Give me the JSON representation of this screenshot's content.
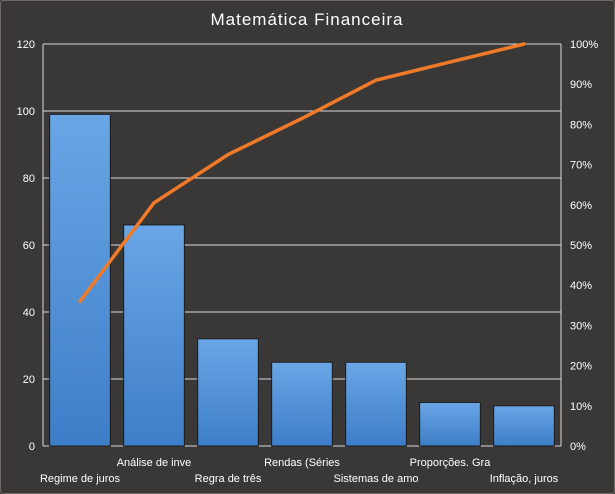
{
  "chart_data": {
    "type": "bar",
    "title": "Matemática  Financeira",
    "categories": [
      "Regime de juros",
      "Análise de inve",
      "Regra de três",
      "Rendas (Séries",
      "Sistemas de amo",
      "Proporções. Gra",
      "Inflação, juros"
    ],
    "series": [
      {
        "type": "bar",
        "axis": "left",
        "values": [
          99,
          66,
          32,
          25,
          25,
          13,
          12
        ]
      },
      {
        "type": "line",
        "axis": "right",
        "values": [
          36,
          60.5,
          72.5,
          81.5,
          91,
          95.5,
          100
        ]
      }
    ],
    "y_left": {
      "min": 0,
      "max": 120,
      "ticks": [
        "0",
        "20",
        "40",
        "60",
        "80",
        "100",
        "120"
      ]
    },
    "y_right": {
      "min": 0,
      "max": 100,
      "ticks": [
        "0%",
        "10%",
        "20%",
        "30%",
        "40%",
        "50%",
        "60%",
        "70%",
        "80%",
        "90%",
        "100%"
      ]
    },
    "grid": true,
    "legend": "none",
    "colors": {
      "background": "#3a3837",
      "bar": "#4f8fd6",
      "bar_light": "#6aa6e6",
      "bar_dark": "#3d7ec8",
      "line": "#f07a28",
      "grid": "#d9d9d9",
      "text": "#ffffff"
    }
  }
}
